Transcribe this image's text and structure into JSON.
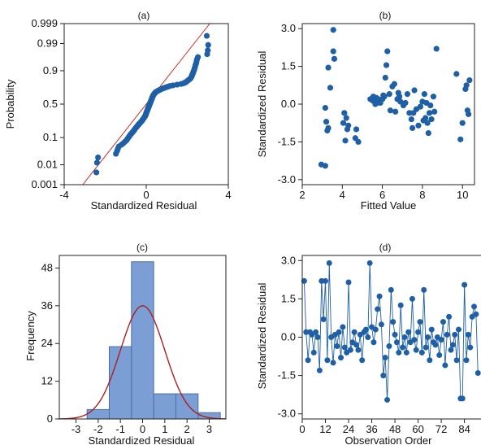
{
  "chart_data": [
    {
      "type": "scatter",
      "title": "(a)",
      "xlabel": "Standardized Residual",
      "ylabel": "Probability",
      "xlim": [
        -4,
        4
      ],
      "xticks": [
        -4,
        0,
        4
      ],
      "xticklabels": [
        "-4",
        "0",
        "4"
      ],
      "ylim": [
        0.001,
        0.999
      ],
      "yscale": "normal-probability",
      "yticks": [
        0.001,
        0.01,
        0.1,
        0.5,
        0.9,
        0.99,
        0.999
      ],
      "yticklabels": [
        "0.001",
        "0.01",
        "0.1",
        "0.5",
        "0.9",
        "0.99",
        "0.999"
      ],
      "reference_line": {
        "from": [
          -3.2,
          0.0007
        ],
        "to": [
          3.2,
          0.9993
        ],
        "color": "#c0302a"
      },
      "marker_color": "#1f5fa6",
      "points": [
        [
          -2.43,
          0.0044
        ],
        [
          -2.4,
          0.0124
        ],
        [
          -2.35,
          0.0204
        ],
        [
          -1.48,
          0.0284
        ],
        [
          -1.42,
          0.0364
        ],
        [
          -1.38,
          0.0444
        ],
        [
          -1.33,
          0.0524
        ],
        [
          -1.2,
          0.0604
        ],
        [
          -1.1,
          0.0684
        ],
        [
          -1.02,
          0.0764
        ],
        [
          -0.95,
          0.0844
        ],
        [
          -0.91,
          0.0924
        ],
        [
          -0.87,
          0.1004
        ],
        [
          -0.83,
          0.1084
        ],
        [
          -0.79,
          0.1164
        ],
        [
          -0.75,
          0.1244
        ],
        [
          -0.71,
          0.1324
        ],
        [
          -0.67,
          0.1404
        ],
        [
          -0.63,
          0.1484
        ],
        [
          -0.6,
          0.1564
        ],
        [
          -0.57,
          0.1644
        ],
        [
          -0.54,
          0.1724
        ],
        [
          -0.51,
          0.1804
        ],
        [
          -0.48,
          0.1884
        ],
        [
          -0.45,
          0.1964
        ],
        [
          -0.42,
          0.2044
        ],
        [
          -0.39,
          0.2124
        ],
        [
          -0.36,
          0.2204
        ],
        [
          -0.33,
          0.2284
        ],
        [
          -0.3,
          0.2364
        ],
        [
          -0.27,
          0.2444
        ],
        [
          -0.24,
          0.2524
        ],
        [
          -0.21,
          0.2604
        ],
        [
          -0.19,
          0.2684
        ],
        [
          -0.17,
          0.2764
        ],
        [
          -0.15,
          0.2844
        ],
        [
          -0.13,
          0.2924
        ],
        [
          -0.11,
          0.3004
        ],
        [
          -0.09,
          0.3084
        ],
        [
          -0.07,
          0.3164
        ],
        [
          -0.05,
          0.3244
        ],
        [
          -0.04,
          0.3324
        ],
        [
          -0.03,
          0.3404
        ],
        [
          -0.02,
          0.3484
        ],
        [
          -0.01,
          0.3564
        ],
        [
          0.0,
          0.3644
        ],
        [
          0.01,
          0.3724
        ],
        [
          0.02,
          0.3804
        ],
        [
          0.03,
          0.3884
        ],
        [
          0.04,
          0.3964
        ],
        [
          0.05,
          0.4044
        ],
        [
          0.06,
          0.4124
        ],
        [
          0.07,
          0.4204
        ],
        [
          0.08,
          0.4284
        ],
        [
          0.09,
          0.4364
        ],
        [
          0.1,
          0.4444
        ],
        [
          0.11,
          0.4524
        ],
        [
          0.12,
          0.4604
        ],
        [
          0.13,
          0.4684
        ],
        [
          0.14,
          0.4764
        ],
        [
          0.15,
          0.4844
        ],
        [
          0.16,
          0.4924
        ],
        [
          0.17,
          0.5004
        ],
        [
          0.18,
          0.5084
        ],
        [
          0.19,
          0.5164
        ],
        [
          0.2,
          0.5244
        ],
        [
          0.21,
          0.5324
        ],
        [
          0.22,
          0.5404
        ],
        [
          0.23,
          0.5484
        ],
        [
          0.24,
          0.5564
        ],
        [
          0.25,
          0.5644
        ],
        [
          0.26,
          0.5724
        ],
        [
          0.27,
          0.5804
        ],
        [
          0.28,
          0.5884
        ],
        [
          0.29,
          0.5964
        ],
        [
          0.3,
          0.6044
        ],
        [
          0.31,
          0.6124
        ],
        [
          0.32,
          0.6204
        ],
        [
          0.33,
          0.6284
        ],
        [
          0.35,
          0.6364
        ],
        [
          0.37,
          0.6444
        ],
        [
          0.39,
          0.6524
        ],
        [
          0.41,
          0.6604
        ],
        [
          0.43,
          0.6684
        ],
        [
          0.46,
          0.6764
        ],
        [
          0.5,
          0.6844
        ],
        [
          0.55,
          0.6924
        ],
        [
          0.6,
          0.7004
        ],
        [
          0.66,
          0.7084
        ],
        [
          0.72,
          0.7164
        ],
        [
          0.8,
          0.7244
        ],
        [
          0.88,
          0.7324
        ],
        [
          0.96,
          0.7404
        ],
        [
          1.05,
          0.7484
        ],
        [
          1.15,
          0.7564
        ],
        [
          1.3,
          0.7644
        ],
        [
          1.5,
          0.7724
        ],
        [
          1.7,
          0.7804
        ],
        [
          1.82,
          0.7884
        ],
        [
          1.9,
          0.7964
        ],
        [
          1.95,
          0.8044
        ],
        [
          2.0,
          0.8124
        ],
        [
          2.05,
          0.8204
        ],
        [
          2.1,
          0.8284
        ],
        [
          2.15,
          0.8364
        ],
        [
          2.18,
          0.8444
        ],
        [
          2.2,
          0.8524
        ],
        [
          2.22,
          0.8604
        ],
        [
          2.24,
          0.8684
        ],
        [
          2.26,
          0.8764
        ],
        [
          2.28,
          0.8844
        ],
        [
          2.3,
          0.8924
        ],
        [
          2.32,
          0.9004
        ],
        [
          2.34,
          0.9084
        ],
        [
          2.36,
          0.9164
        ],
        [
          2.38,
          0.9244
        ],
        [
          2.4,
          0.9324
        ],
        [
          2.43,
          0.9404
        ],
        [
          2.45,
          0.9484
        ],
        [
          2.47,
          0.9564
        ],
        [
          2.52,
          0.9644
        ],
        [
          2.97,
          0.9724
        ],
        [
          3.0,
          0.9804
        ],
        [
          3.02,
          0.9884
        ],
        [
          2.95,
          0.9956
        ]
      ]
    },
    {
      "type": "scatter",
      "title": "(b)",
      "xlabel": "Fitted Value",
      "ylabel": "Standardized Residual",
      "xlim": [
        2,
        10.6
      ],
      "ylim": [
        -3.2,
        3.2
      ],
      "xticks": [
        2,
        4,
        6,
        8,
        10
      ],
      "xticklabels": [
        "2",
        "4",
        "6",
        "8",
        "10"
      ],
      "yticks": [
        -3.0,
        -1.5,
        0.0,
        1.5,
        3.0
      ],
      "yticklabels": [
        "-3.0",
        "-1.5",
        "0.0",
        "1.5",
        "3.0"
      ],
      "marker_color": "#1f5fa6",
      "points": [
        [
          2.95,
          -2.4
        ],
        [
          3.15,
          -2.45
        ],
        [
          3.15,
          -0.15
        ],
        [
          3.2,
          -0.7
        ],
        [
          3.25,
          -1.05
        ],
        [
          3.3,
          -0.95
        ],
        [
          3.3,
          1.45
        ],
        [
          3.4,
          0.65
        ],
        [
          3.55,
          2.95
        ],
        [
          3.55,
          2.1
        ],
        [
          3.6,
          1.8
        ],
        [
          4.05,
          -0.75
        ],
        [
          4.1,
          -0.35
        ],
        [
          4.15,
          -1.45
        ],
        [
          4.2,
          -0.55
        ],
        [
          4.25,
          -1.0
        ],
        [
          4.3,
          -0.85
        ],
        [
          4.65,
          -1.35
        ],
        [
          4.7,
          -1.0
        ],
        [
          4.8,
          -1.5
        ],
        [
          5.4,
          0.2
        ],
        [
          5.5,
          0.15
        ],
        [
          5.55,
          0.3
        ],
        [
          5.6,
          0.1
        ],
        [
          5.65,
          0.0
        ],
        [
          5.7,
          0.25
        ],
        [
          5.75,
          0.05
        ],
        [
          5.8,
          0.2
        ],
        [
          5.85,
          0.1
        ],
        [
          5.9,
          0.05
        ],
        [
          6.0,
          0.2
        ],
        [
          6.05,
          0.35
        ],
        [
          6.1,
          0.3
        ],
        [
          6.15,
          1.05
        ],
        [
          6.2,
          1.55
        ],
        [
          6.25,
          2.1
        ],
        [
          6.35,
          0.4
        ],
        [
          6.4,
          -0.25
        ],
        [
          6.5,
          0.7
        ],
        [
          6.6,
          0.8
        ],
        [
          6.65,
          -0.3
        ],
        [
          6.75,
          0.2
        ],
        [
          6.8,
          0.45
        ],
        [
          6.85,
          0.3
        ],
        [
          6.9,
          0.1
        ],
        [
          7.05,
          -0.05
        ],
        [
          7.15,
          0.05
        ],
        [
          7.25,
          0.4
        ],
        [
          7.35,
          -0.35
        ],
        [
          7.45,
          -0.6
        ],
        [
          7.5,
          -0.95
        ],
        [
          7.55,
          -0.35
        ],
        [
          7.6,
          0.55
        ],
        [
          7.7,
          -0.2
        ],
        [
          7.8,
          -0.85
        ],
        [
          7.9,
          -0.1
        ],
        [
          8.0,
          0.1
        ],
        [
          8.05,
          -0.65
        ],
        [
          8.1,
          0.4
        ],
        [
          8.15,
          -0.55
        ],
        [
          8.2,
          0.05
        ],
        [
          8.25,
          -0.75
        ],
        [
          8.3,
          -1.15
        ],
        [
          8.35,
          -0.35
        ],
        [
          8.4,
          -0.05
        ],
        [
          8.45,
          -0.6
        ],
        [
          8.55,
          0.3
        ],
        [
          8.6,
          -0.3
        ],
        [
          8.7,
          2.2
        ],
        [
          9.7,
          1.2
        ],
        [
          9.9,
          -1.4
        ],
        [
          10.0,
          -0.75
        ],
        [
          10.15,
          0.6
        ],
        [
          10.2,
          0.75
        ],
        [
          10.25,
          -0.25
        ],
        [
          10.3,
          -0.4
        ],
        [
          10.35,
          0.95
        ]
      ]
    },
    {
      "type": "bar",
      "subtype": "histogram",
      "title": "(c)",
      "xlabel": "Standardized Residual",
      "ylabel": "Frequency",
      "xlim": [
        -3.75,
        3.75
      ],
      "ylim": [
        0,
        52
      ],
      "xticks": [
        -3,
        -2,
        -1,
        0,
        1,
        2,
        3
      ],
      "xticklabels": [
        "-3",
        "-2",
        "-1",
        "0",
        "1",
        "2",
        "3"
      ],
      "yticks": [
        0,
        12,
        24,
        36,
        48
      ],
      "yticklabels": [
        "0",
        "12",
        "24",
        "36",
        "48"
      ],
      "bin_edges": [
        -2.5,
        -1.5,
        -0.5,
        0.5,
        1.5,
        2.5,
        3.5
      ],
      "values": [
        3,
        23,
        50,
        8,
        8,
        2
      ],
      "bar_color": "#7b9fd4",
      "normal_curve": {
        "mean": 0.0,
        "sd": 1.0,
        "peak": 36,
        "color": "#a82020"
      }
    },
    {
      "type": "line",
      "title": "(d)",
      "xlabel": "Observation Order",
      "ylabel": "Standardized Residual",
      "xlim": [
        0,
        93
      ],
      "ylim": [
        -3.2,
        3.2
      ],
      "xticks": [
        0,
        12,
        24,
        36,
        48,
        60,
        72,
        84
      ],
      "xticklabels": [
        "0",
        "12",
        "24",
        "36",
        "48",
        "60",
        "72",
        "84"
      ],
      "yticks": [
        -3.0,
        -1.5,
        0.0,
        1.5,
        3.0
      ],
      "yticklabels": [
        "-3.0",
        "-1.5",
        "0.0",
        "1.5",
        "3.0"
      ],
      "marker_color": "#1f5fa6",
      "x": [
        1,
        2,
        3,
        4,
        5,
        6,
        7,
        8,
        9,
        10,
        11,
        12,
        13,
        14,
        15,
        16,
        17,
        18,
        19,
        20,
        21,
        22,
        23,
        24,
        25,
        26,
        27,
        28,
        29,
        30,
        31,
        32,
        33,
        34,
        35,
        36,
        37,
        38,
        39,
        40,
        41,
        42,
        43,
        44,
        45,
        46,
        47,
        48,
        49,
        50,
        51,
        52,
        53,
        54,
        55,
        56,
        57,
        58,
        59,
        60,
        61,
        62,
        63,
        64,
        65,
        66,
        67,
        68,
        69,
        70,
        71,
        72,
        73,
        74,
        75,
        76,
        77,
        78,
        79,
        80,
        81,
        82,
        83,
        84,
        85,
        86,
        87,
        88,
        89,
        90,
        91
      ],
      "y": [
        2.2,
        0.2,
        -0.9,
        0.2,
        0.1,
        -0.6,
        0.2,
        0.0,
        -1.3,
        2.2,
        0.7,
        2.2,
        -0.9,
        2.9,
        0.0,
        -1.0,
        0.1,
        -0.35,
        0.2,
        -0.8,
        0.4,
        -0.4,
        -0.6,
        2.15,
        -0.5,
        -0.2,
        0.2,
        -0.3,
        -0.5,
        0.1,
        -0.9,
        0.2,
        0.3,
        0.0,
        2.9,
        0.4,
        -0.2,
        0.3,
        1.1,
        1.6,
        0.5,
        -1.5,
        -0.8,
        -2.45,
        -0.35,
        1.85,
        0.6,
        0.1,
        -0.2,
        -0.6,
        1.25,
        -0.4,
        0.0,
        -0.6,
        0.2,
        -0.2,
        1.5,
        -0.1,
        -0.5,
        0.2,
        0.6,
        -0.6,
        1.85,
        -0.4,
        0.0,
        -0.9,
        0.3,
        -0.2,
        -0.3,
        0.0,
        -0.7,
        -0.1,
        0.6,
        -1.1,
        0.1,
        0.8,
        -0.5,
        -0.3,
        0.1,
        -0.9,
        0.3,
        -2.4,
        -2.4,
        2.05,
        -0.9,
        0.1,
        -0.4,
        0.8,
        1.2,
        0.9,
        -1.4
      ]
    }
  ]
}
